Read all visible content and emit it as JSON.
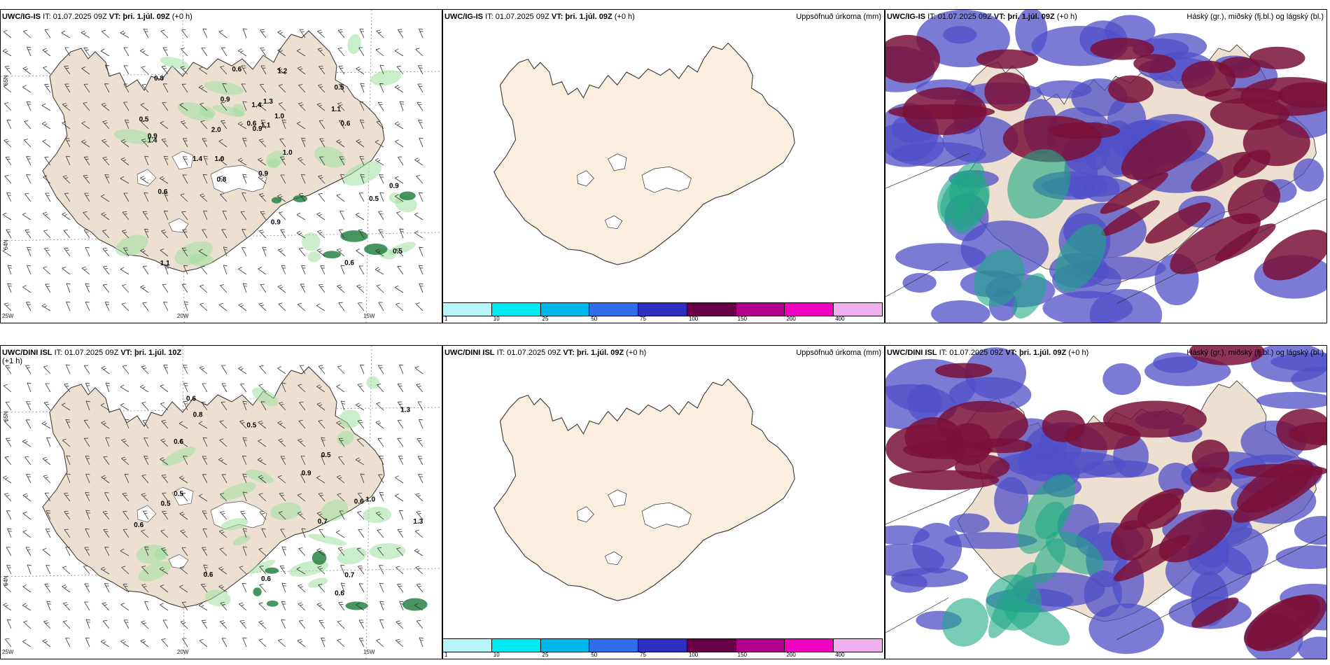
{
  "panels": {
    "p1": {
      "model": "UWC/IG-IS",
      "it_label": "IT:",
      "it_value": "01.07.2025 09Z",
      "vt_label": "VT:",
      "vt_value": "þri. 1.júl. 09Z",
      "lead": "(+0 h)",
      "right": ""
    },
    "p2": {
      "model": "UWC/IG-IS",
      "it_label": "IT:",
      "it_value": "01.07.2025 09Z",
      "vt_label": "VT:",
      "vt_value": "þri. 1.júl. 09Z",
      "lead": "(+0 h)",
      "right": "Uppsöfnuð úrkoma (mm)"
    },
    "p3": {
      "model": "UWC/IG-IS",
      "it_label": "IT:",
      "it_value": "01.07.2025 09Z",
      "vt_label": "VT:",
      "vt_value": "þri. 1.júl. 09Z",
      "lead": "(+0 h)",
      "right": "Háský (gr.), miðský (fj.bl.) og lágský (bl.)"
    },
    "p4": {
      "model": "UWC/DINI ISL",
      "it_label": "IT:",
      "it_value": "01.07.2025 09Z",
      "vt_label": "VT:",
      "vt_value": "þri. 1.júl. 10Z",
      "lead": "(+1 h)",
      "right": ""
    },
    "p5": {
      "model": "UWC/DINI ISL",
      "it_label": "IT:",
      "it_value": "01.07.2025 09Z",
      "vt_label": "VT:",
      "vt_value": "þri. 1.júl. 09Z",
      "lead": "(+0 h)",
      "right": "Uppsöfnuð úrkoma (mm)"
    },
    "p6": {
      "model": "UWC/DINI ISL",
      "it_label": "IT:",
      "it_value": "01.07.2025 09Z",
      "vt_label": "VT:",
      "vt_value": "þri. 1.júl. 09Z",
      "lead": "(+0 h)",
      "right": "Háský (gr.), miðský (fj.bl.) og lágský (bl.)"
    }
  },
  "axes": {
    "lat65": "65N",
    "lat64": "64N",
    "lon25": "25W",
    "lon20": "20W",
    "lon15": "15W"
  },
  "colorbar": {
    "ticks": [
      "1",
      "10",
      "25",
      "50",
      "75",
      "100",
      "150",
      "200",
      "400"
    ],
    "colors": [
      "#b8f5f8",
      "#00e8f0",
      "#00b8ea",
      "#2f6ee6",
      "#2c2fc0",
      "#6a0046",
      "#b0008c",
      "#f000c0",
      "#f0b0f0"
    ]
  },
  "precip_labels_top": [
    "0.6",
    "0.6",
    "1.1",
    "0.9",
    "0.8",
    "0.5",
    "0.6",
    "1.0",
    "0.9",
    "0.8",
    "0.9",
    "0.5",
    "0.5",
    "0.9",
    "0.6",
    "0.6",
    "1.4",
    "1.2",
    "0.9",
    "2.0",
    "1.0",
    "0.5",
    "0.9",
    "1.1",
    "1.0",
    "1.4",
    "1.1",
    "1.3",
    "1.4"
  ],
  "precip_labels_bottom": [
    "0.6",
    "0.5",
    "0.8",
    "0.9",
    "0.5",
    "0.7",
    "0.6",
    "0.5",
    "1.3",
    "0.6",
    "0.6",
    "0.6",
    "0.6",
    "0.6",
    "0.7",
    "0.5",
    "1.3",
    "1.0"
  ]
}
